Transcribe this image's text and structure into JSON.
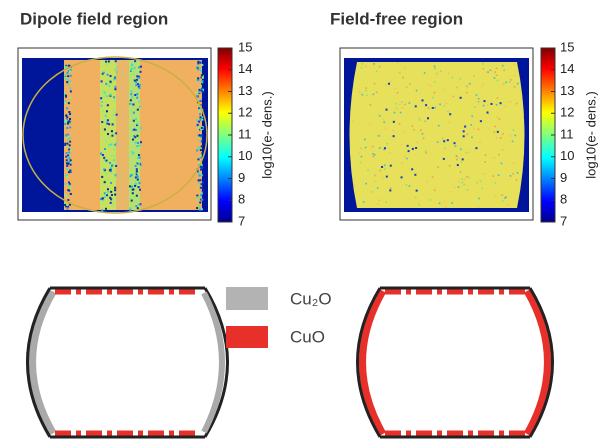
{
  "panels": [
    {
      "title": "Dipole field region",
      "colorbar": {
        "label": "log10(e- dens.)",
        "ticks": [
          7,
          8,
          9,
          10,
          11,
          12,
          13,
          14,
          15
        ]
      }
    },
    {
      "title": "Field-free region",
      "colorbar": {
        "label": "log10(e- dens.)",
        "ticks": [
          7,
          8,
          9,
          10,
          11,
          12,
          13,
          14,
          15
        ]
      }
    }
  ],
  "legend": [
    {
      "label": "Cu₂O"
    },
    {
      "label": "CuO"
    }
  ]
}
